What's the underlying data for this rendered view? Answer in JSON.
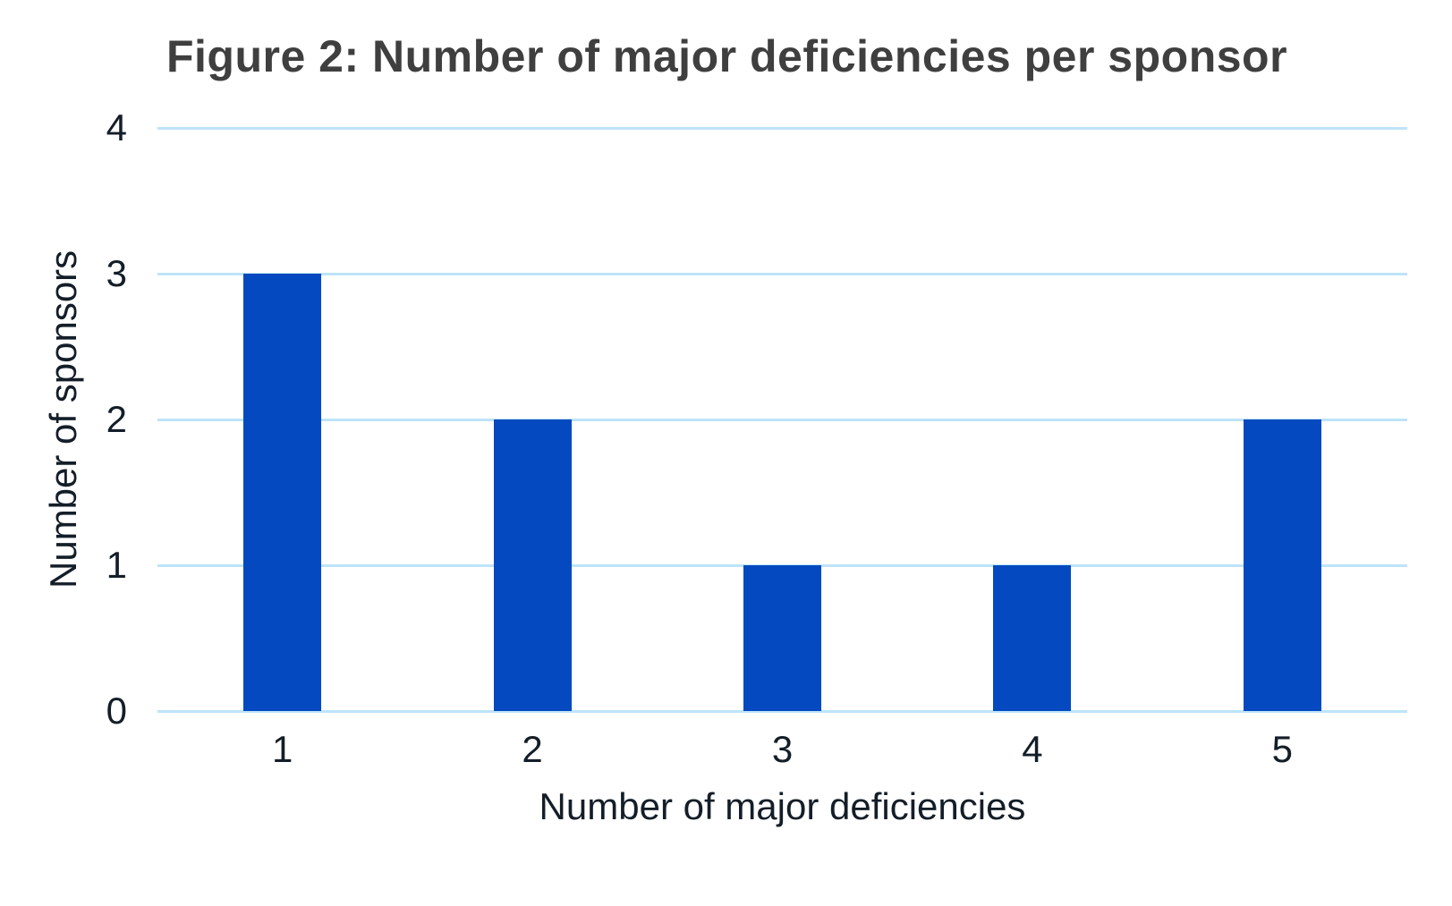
{
  "chart_data": {
    "type": "bar",
    "title": "Figure 2: Number of major deficiencies per sponsor",
    "categories": [
      "1",
      "2",
      "3",
      "4",
      "5"
    ],
    "values": [
      3,
      2,
      1,
      1,
      2
    ],
    "xlabel": "Number of major deficiencies",
    "ylabel": "Number of sponsors",
    "ylim": [
      0,
      4
    ],
    "yticks": [
      0,
      1,
      2,
      3,
      4
    ],
    "grid": "horizontal-only",
    "legend": "none",
    "colors": {
      "bar": "#0449c0",
      "gridline": "#bde4f9",
      "title_text": "#3f3f3f",
      "axis_text": "#141e28",
      "background": "#ffffff"
    }
  }
}
